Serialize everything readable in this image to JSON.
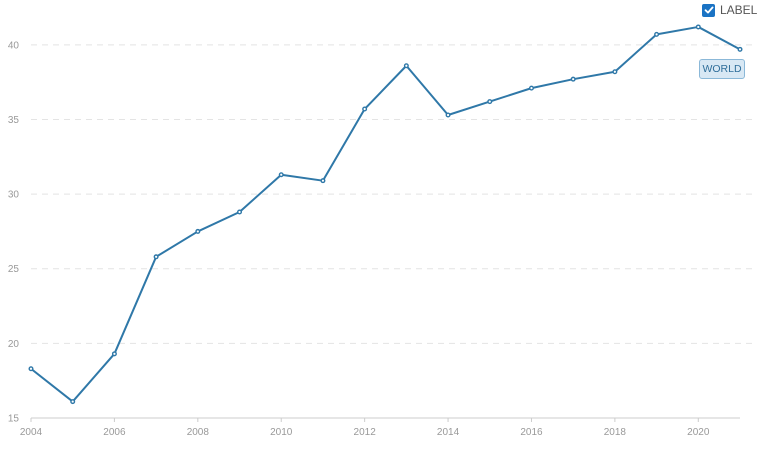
{
  "controls": {
    "label_toggle": {
      "text": "LABEL",
      "checked": true
    }
  },
  "colors": {
    "line": "#2f78a8",
    "checkbox": "#1a73c4",
    "tag_bg": "#d8e8f4"
  },
  "chart_data": {
    "type": "line",
    "title": "",
    "xlabel": "",
    "ylabel": "",
    "x": [
      2004,
      2005,
      2006,
      2007,
      2008,
      2009,
      2010,
      2011,
      2012,
      2013,
      2014,
      2015,
      2016,
      2017,
      2018,
      2019,
      2020,
      2021
    ],
    "series": [
      {
        "name": "WORLD",
        "values": [
          18.3,
          16.1,
          19.3,
          25.8,
          27.5,
          28.8,
          31.3,
          30.9,
          35.7,
          38.6,
          35.3,
          36.2,
          37.1,
          37.7,
          38.2,
          40.7,
          41.2,
          39.7
        ]
      }
    ],
    "xticks": [
      "2004",
      "2006",
      "2008",
      "2010",
      "2012",
      "2014",
      "2016",
      "2018",
      "2020"
    ],
    "yticks": [
      "15",
      "20",
      "25",
      "30",
      "35",
      "40"
    ],
    "xlim": [
      2004,
      2021
    ],
    "ylim": [
      15,
      42
    ],
    "grid": true,
    "legend": "none"
  }
}
